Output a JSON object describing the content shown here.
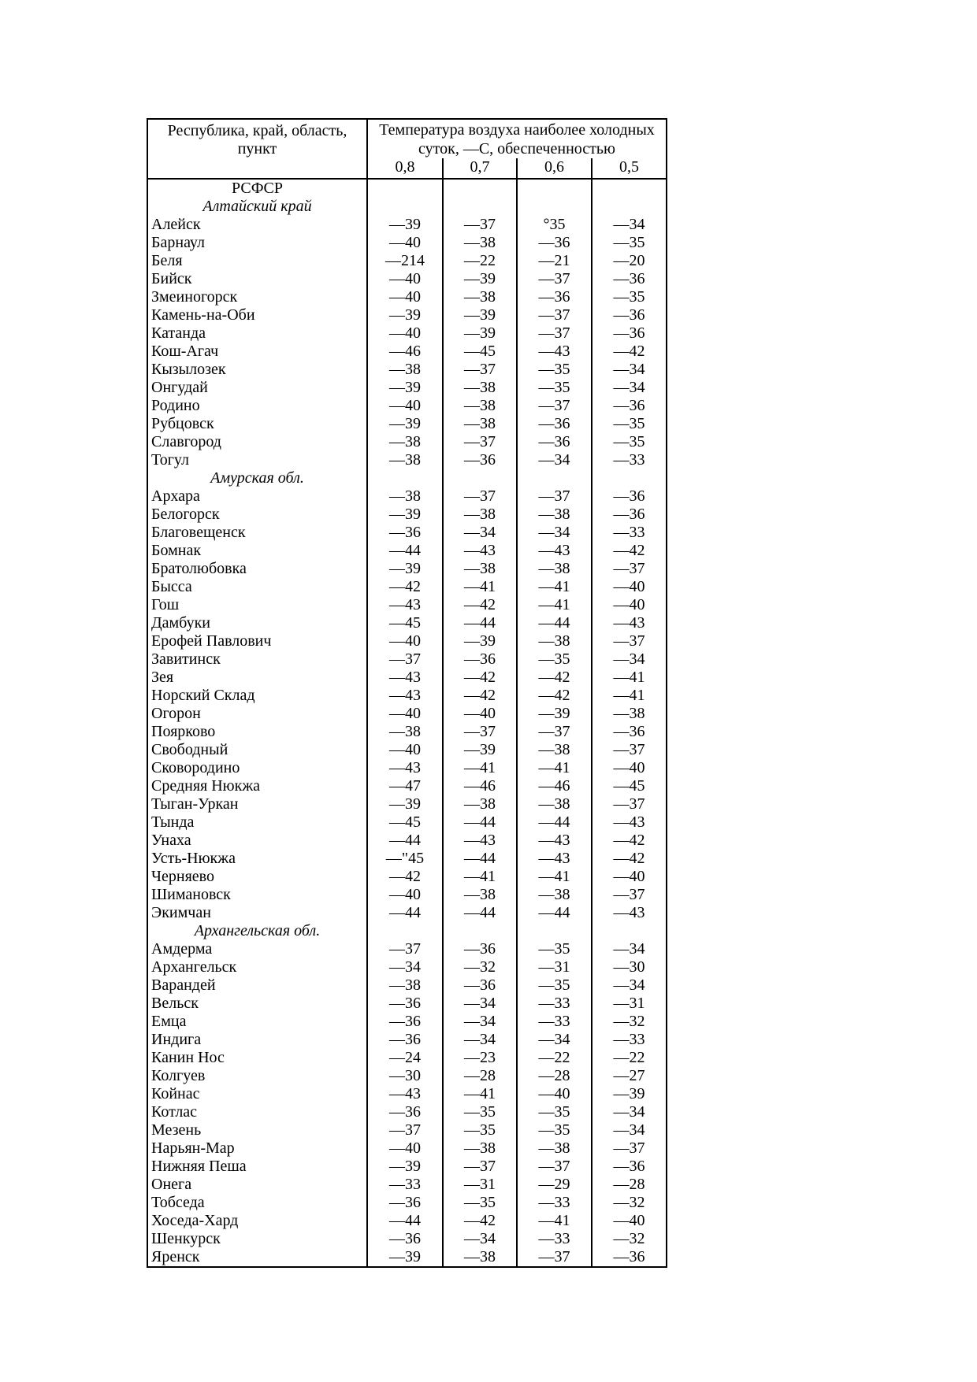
{
  "document": {
    "table": {
      "col_header": "Республика, край, область,\nпункт",
      "temp_header": "Температура воздуха наиболее холодных\nсуток, —С, обеспеченностью",
      "probability_columns": [
        "0,8",
        "0,7",
        "0,6",
        "0,5"
      ],
      "rows": [
        {
          "type": "section",
          "name": "РСФСР"
        },
        {
          "type": "subsection",
          "name": "Алтайский край"
        },
        {
          "type": "city",
          "name": "Алейск",
          "values": [
            "—39",
            "—37",
            "°35",
            "—34"
          ]
        },
        {
          "type": "city",
          "name": "Барнаул",
          "values": [
            "—40",
            "—38",
            "—36",
            "—35"
          ]
        },
        {
          "type": "city",
          "name": "Беля",
          "values": [
            "—214",
            "—22",
            "—21",
            "—20"
          ]
        },
        {
          "type": "city",
          "name": "Бийск",
          "values": [
            "—40",
            "—39",
            "—37",
            "—36"
          ]
        },
        {
          "type": "city",
          "name": "Змеиногорск",
          "values": [
            "—40",
            "—38",
            "—36",
            "—35"
          ]
        },
        {
          "type": "city",
          "name": "Камень-на-Оби",
          "values": [
            "—39",
            "—39",
            "—37",
            "—36"
          ]
        },
        {
          "type": "city",
          "name": "Катанда",
          "values": [
            "—40",
            "—39",
            "—37",
            "—36"
          ]
        },
        {
          "type": "city",
          "name": "Кош-Агач",
          "values": [
            "—46",
            "—45",
            "—43",
            "—42"
          ]
        },
        {
          "type": "city",
          "name": "Кызылозек",
          "values": [
            "—38",
            "—37",
            "—35",
            "—34"
          ]
        },
        {
          "type": "city",
          "name": "Онгудай",
          "values": [
            "—39",
            "—38",
            "—35",
            "—34"
          ]
        },
        {
          "type": "city",
          "name": "Родино",
          "values": [
            "—40",
            "—38",
            "—37",
            "—36"
          ]
        },
        {
          "type": "city",
          "name": "Рубцовск",
          "values": [
            "—39",
            "—38",
            "—36",
            "—35"
          ]
        },
        {
          "type": "city",
          "name": "Славгород",
          "values": [
            "—38",
            "—37",
            "—36",
            "—35"
          ]
        },
        {
          "type": "city",
          "name": "Тогул",
          "values": [
            "—38",
            "—36",
            "—34",
            "—33"
          ]
        },
        {
          "type": "subsection",
          "name": "Амурская обл."
        },
        {
          "type": "city",
          "name": "Архара",
          "values": [
            "—38",
            "—37",
            "—37",
            "—36"
          ]
        },
        {
          "type": "city",
          "name": "Белогорск",
          "values": [
            "—39",
            "—38",
            "—38",
            "—36"
          ]
        },
        {
          "type": "city",
          "name": "Благовещенск",
          "values": [
            "—36",
            "—34",
            "—34",
            "—33"
          ]
        },
        {
          "type": "city",
          "name": "Бомнак",
          "values": [
            "—44",
            "—43",
            "—43",
            "—42"
          ]
        },
        {
          "type": "city",
          "name": "Братолюбовка",
          "values": [
            "—39",
            "—38",
            "—38",
            "—37"
          ]
        },
        {
          "type": "city",
          "name": "Бысса",
          "values": [
            "—42",
            "—41",
            "—41",
            "—40"
          ]
        },
        {
          "type": "city",
          "name": "Гош",
          "values": [
            "—43",
            "—42",
            "—41",
            "—40"
          ]
        },
        {
          "type": "city",
          "name": "Дамбуки",
          "values": [
            "—45",
            "—44",
            "—44",
            "—43"
          ]
        },
        {
          "type": "city",
          "name": "Ерофей Павлович",
          "values": [
            "—40",
            "—39",
            "—38",
            "—37"
          ]
        },
        {
          "type": "city",
          "name": "Завитинск",
          "values": [
            "—37",
            "—36",
            "—35",
            "—34"
          ]
        },
        {
          "type": "city",
          "name": "Зея",
          "values": [
            "—43",
            "—42",
            "—42",
            "—41"
          ]
        },
        {
          "type": "city",
          "name": "Норский Склад",
          "values": [
            "—43",
            "—42",
            "—42",
            "—41"
          ]
        },
        {
          "type": "city",
          "name": "Огорон",
          "values": [
            "—40",
            "—40",
            "—39",
            "—38"
          ]
        },
        {
          "type": "city",
          "name": "Поярково",
          "values": [
            "—38",
            "—37",
            "—37",
            "—36"
          ]
        },
        {
          "type": "city",
          "name": "Свободный",
          "values": [
            "—40",
            "—39",
            "—38",
            "—37"
          ]
        },
        {
          "type": "city",
          "name": "Сковородино",
          "values": [
            "—43",
            "—41",
            "—41",
            "—40"
          ]
        },
        {
          "type": "city",
          "name": "Средняя Нюкжа",
          "values": [
            "—47",
            "—46",
            "—46",
            "—45"
          ]
        },
        {
          "type": "city",
          "name": "Тыган-Уркан",
          "values": [
            "—39",
            "—38",
            "—38",
            "—37"
          ]
        },
        {
          "type": "city",
          "name": "Тында",
          "values": [
            "—45",
            "—44",
            "—44",
            "—43"
          ]
        },
        {
          "type": "city",
          "name": "Унаха",
          "values": [
            "—44",
            "—43",
            "—43",
            "—42"
          ]
        },
        {
          "type": "city",
          "name": "Усть-Нюкжа",
          "values": [
            "—\"45",
            "—44",
            "—43",
            "—42"
          ]
        },
        {
          "type": "city",
          "name": "Черняево",
          "values": [
            "—42",
            "—41",
            "—41",
            "—40"
          ]
        },
        {
          "type": "city",
          "name": "Шимановск",
          "values": [
            "—40",
            "—38",
            "—38",
            "—37"
          ]
        },
        {
          "type": "city",
          "name": "Экимчан",
          "values": [
            "—44",
            "—44",
            "—44",
            "—43"
          ]
        },
        {
          "type": "subsection",
          "name": "Архангельская обл."
        },
        {
          "type": "city",
          "name": "Амдерма",
          "values": [
            "—37",
            "—36",
            "—35",
            "—34"
          ]
        },
        {
          "type": "city",
          "name": "Архангельск",
          "values": [
            "—34",
            "—32",
            "—31",
            "—30"
          ]
        },
        {
          "type": "city",
          "name": "Варандей",
          "values": [
            "—38",
            "—36",
            "—35",
            "—34"
          ]
        },
        {
          "type": "city",
          "name": "Вельск",
          "values": [
            "—36",
            "—34",
            "—33",
            "—31"
          ]
        },
        {
          "type": "city",
          "name": "Емца",
          "values": [
            "—36",
            "—34",
            "—33",
            "—32"
          ]
        },
        {
          "type": "city",
          "name": "Индига",
          "values": [
            "—36",
            "—34",
            "—34",
            "—33"
          ]
        },
        {
          "type": "city",
          "name": "Канин Нос",
          "values": [
            "—24",
            "—23",
            "—22",
            "—22"
          ]
        },
        {
          "type": "city",
          "name": "Колгуев",
          "values": [
            "—30",
            "—28",
            "—28",
            "—27"
          ]
        },
        {
          "type": "city",
          "name": "Койнас",
          "values": [
            "—43",
            "—41",
            "—40",
            "—39"
          ]
        },
        {
          "type": "city",
          "name": "Котлас",
          "values": [
            "—36",
            "—35",
            "—35",
            "—34"
          ]
        },
        {
          "type": "city",
          "name": "Мезень",
          "values": [
            "—37",
            "—35",
            "—35",
            "—34"
          ]
        },
        {
          "type": "city",
          "name": "Нарьян-Мар",
          "values": [
            "—40",
            "—38",
            "—38",
            "—37"
          ]
        },
        {
          "type": "city",
          "name": "Нижняя Пеша",
          "values": [
            "—39",
            "—37",
            "—37",
            "—36"
          ]
        },
        {
          "type": "city",
          "name": "Онега",
          "values": [
            "—33",
            "—31",
            "—29",
            "—28"
          ]
        },
        {
          "type": "city",
          "name": "Тобседа",
          "values": [
            "—36",
            "—35",
            "—33",
            "—32"
          ]
        },
        {
          "type": "city",
          "name": "Хоседа-Хард",
          "values": [
            "—44",
            "—42",
            "—41",
            "—40"
          ]
        },
        {
          "type": "city",
          "name": "Шенкурск",
          "values": [
            "—36",
            "—34",
            "—33",
            "—32"
          ]
        },
        {
          "type": "city",
          "name": "Яренск",
          "values": [
            "—39",
            "—38",
            "—37",
            "—36"
          ]
        }
      ]
    }
  }
}
